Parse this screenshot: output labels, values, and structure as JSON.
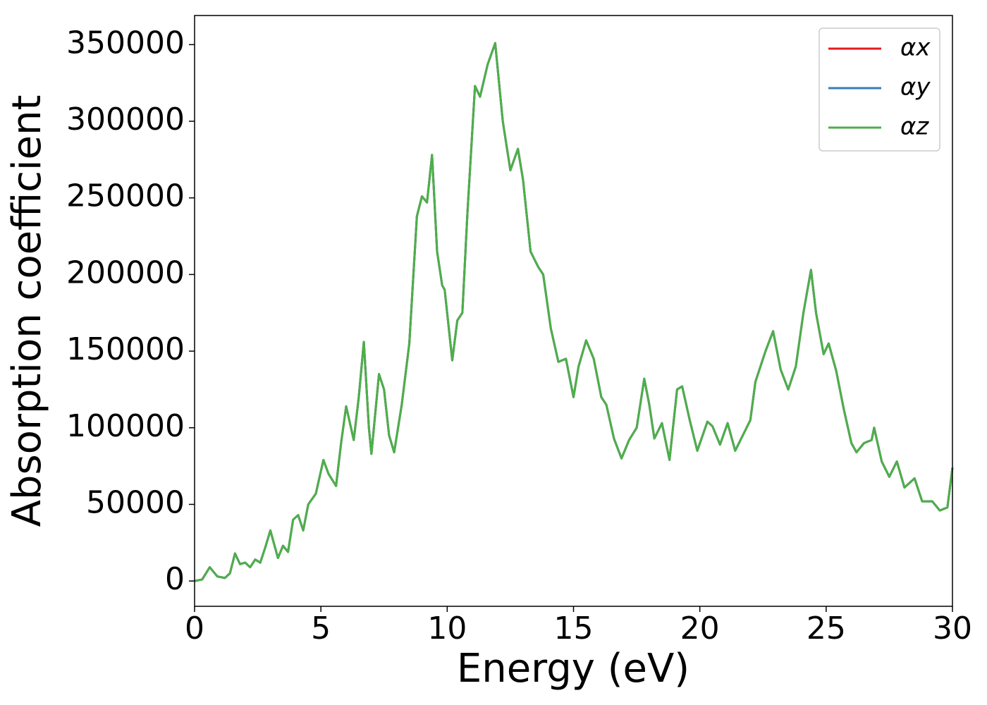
{
  "chart_data": {
    "type": "line",
    "xlabel": "Energy (eV)",
    "ylabel": "Absorption coefficient",
    "xlim": [
      0,
      30
    ],
    "xticks": [
      0,
      5,
      10,
      15,
      20,
      25,
      30
    ],
    "ylim": [
      -16500,
      369000
    ],
    "yticks": [
      0,
      50000,
      100000,
      150000,
      200000,
      250000,
      300000,
      350000
    ],
    "legend": "upper right",
    "x": [
      0,
      0.3,
      0.6,
      0.9,
      1.2,
      1.4,
      1.6,
      1.8,
      2.0,
      2.2,
      2.4,
      2.6,
      2.8,
      3.0,
      3.3,
      3.5,
      3.7,
      3.9,
      4.1,
      4.3,
      4.5,
      4.8,
      5.1,
      5.3,
      5.6,
      5.8,
      6.0,
      6.3,
      6.5,
      6.7,
      6.9,
      7.0,
      7.3,
      7.5,
      7.7,
      7.9,
      8.2,
      8.5,
      8.8,
      9.0,
      9.2,
      9.4,
      9.6,
      9.8,
      9.9,
      10.2,
      10.4,
      10.6,
      10.8,
      11.1,
      11.3,
      11.6,
      11.9,
      12.2,
      12.5,
      12.8,
      13.0,
      13.3,
      13.6,
      13.8,
      14.1,
      14.4,
      14.7,
      15.0,
      15.2,
      15.5,
      15.8,
      16.1,
      16.3,
      16.6,
      16.9,
      17.2,
      17.5,
      17.8,
      18.0,
      18.2,
      18.5,
      18.8,
      19.1,
      19.3,
      19.6,
      19.9,
      20.3,
      20.5,
      20.8,
      21.1,
      21.4,
      21.7,
      22.0,
      22.2,
      22.6,
      22.9,
      23.2,
      23.5,
      23.8,
      24.1,
      24.4,
      24.6,
      24.9,
      25.1,
      25.4,
      25.7,
      26.0,
      26.2,
      26.5,
      26.8,
      26.9,
      27.2,
      27.5,
      27.8,
      28.1,
      28.5,
      28.8,
      29.2,
      29.5,
      29.8,
      30.0
    ],
    "series": [
      {
        "name": "αx",
        "color": "#e41a1c",
        "values": [
          0,
          1000,
          9000,
          3000,
          2000,
          5000,
          18000,
          11000,
          12000,
          9000,
          14000,
          12000,
          22000,
          33000,
          15000,
          23000,
          19000,
          40000,
          43000,
          33000,
          50000,
          57000,
          79000,
          70000,
          62000,
          90000,
          114000,
          92000,
          120000,
          156000,
          100000,
          83000,
          135000,
          125000,
          95000,
          84000,
          115000,
          155000,
          238000,
          251000,
          247000,
          278000,
          215000,
          193000,
          190000,
          144000,
          170000,
          175000,
          240000,
          323000,
          316000,
          337000,
          351000,
          300000,
          268000,
          282000,
          262000,
          215000,
          205000,
          200000,
          165000,
          143000,
          145000,
          120000,
          140000,
          157000,
          145000,
          120000,
          115000,
          93000,
          80000,
          92000,
          100000,
          132000,
          115000,
          93000,
          103000,
          79000,
          125000,
          127000,
          105000,
          85000,
          104000,
          101000,
          89000,
          103000,
          85000,
          95000,
          105000,
          130000,
          150000,
          163000,
          138000,
          125000,
          140000,
          175000,
          203000,
          175000,
          148000,
          155000,
          137000,
          112000,
          90000,
          84000,
          90000,
          92000,
          100000,
          78000,
          68000,
          78000,
          61000,
          67000,
          52000,
          52000,
          46000,
          48000,
          74000
        ]
      },
      {
        "name": "αy",
        "color": "#377eb8",
        "values": [
          0,
          1000,
          9000,
          3000,
          2000,
          5000,
          18000,
          11000,
          12000,
          9000,
          14000,
          12000,
          22000,
          33000,
          15000,
          23000,
          19000,
          40000,
          43000,
          33000,
          50000,
          57000,
          79000,
          70000,
          62000,
          90000,
          114000,
          92000,
          120000,
          156000,
          100000,
          83000,
          135000,
          125000,
          95000,
          84000,
          115000,
          155000,
          238000,
          251000,
          247000,
          278000,
          215000,
          193000,
          190000,
          144000,
          170000,
          175000,
          240000,
          323000,
          316000,
          337000,
          351000,
          300000,
          268000,
          282000,
          262000,
          215000,
          205000,
          200000,
          165000,
          143000,
          145000,
          120000,
          140000,
          157000,
          145000,
          120000,
          115000,
          93000,
          80000,
          92000,
          100000,
          132000,
          115000,
          93000,
          103000,
          79000,
          125000,
          127000,
          105000,
          85000,
          104000,
          101000,
          89000,
          103000,
          85000,
          95000,
          105000,
          130000,
          150000,
          163000,
          138000,
          125000,
          140000,
          175000,
          203000,
          175000,
          148000,
          155000,
          137000,
          112000,
          90000,
          84000,
          90000,
          92000,
          100000,
          78000,
          68000,
          78000,
          61000,
          67000,
          52000,
          52000,
          46000,
          48000,
          74000
        ]
      },
      {
        "name": "αz",
        "color": "#4daf4a",
        "values": [
          0,
          1000,
          9000,
          3000,
          2000,
          5000,
          18000,
          11000,
          12000,
          9000,
          14000,
          12000,
          22000,
          33000,
          15000,
          23000,
          19000,
          40000,
          43000,
          33000,
          50000,
          57000,
          79000,
          70000,
          62000,
          90000,
          114000,
          92000,
          120000,
          156000,
          100000,
          83000,
          135000,
          125000,
          95000,
          84000,
          115000,
          155000,
          238000,
          251000,
          247000,
          278000,
          215000,
          193000,
          190000,
          144000,
          170000,
          175000,
          240000,
          323000,
          316000,
          337000,
          351000,
          300000,
          268000,
          282000,
          262000,
          215000,
          205000,
          200000,
          165000,
          143000,
          145000,
          120000,
          140000,
          157000,
          145000,
          120000,
          115000,
          93000,
          80000,
          92000,
          100000,
          132000,
          115000,
          93000,
          103000,
          79000,
          125000,
          127000,
          105000,
          85000,
          104000,
          101000,
          89000,
          103000,
          85000,
          95000,
          105000,
          130000,
          150000,
          163000,
          138000,
          125000,
          140000,
          175000,
          203000,
          175000,
          148000,
          155000,
          137000,
          112000,
          90000,
          84000,
          90000,
          92000,
          100000,
          78000,
          68000,
          78000,
          61000,
          67000,
          52000,
          52000,
          46000,
          48000,
          74000
        ]
      }
    ]
  }
}
